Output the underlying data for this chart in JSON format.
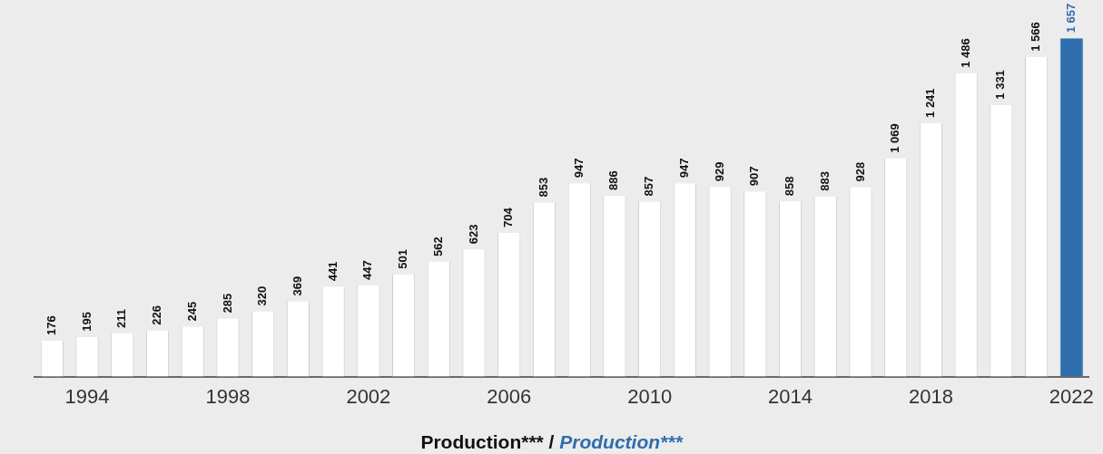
{
  "chart_data": {
    "type": "bar",
    "xlabel": "Production*** / Production***",
    "categories": [
      null,
      "1994",
      null,
      null,
      null,
      "1998",
      null,
      null,
      null,
      "2002",
      null,
      null,
      null,
      "2006",
      null,
      null,
      null,
      "2010",
      null,
      null,
      null,
      "2014",
      null,
      null,
      null,
      "2018",
      null,
      null,
      null,
      "2022"
    ],
    "values": [
      176,
      195,
      211,
      226,
      245,
      285,
      320,
      369,
      441,
      447,
      501,
      562,
      623,
      704,
      853,
      947,
      886,
      857,
      947,
      929,
      907,
      858,
      883,
      928,
      1069,
      1241,
      1486,
      1331,
      1566,
      1657
    ],
    "value_labels": [
      "176",
      "195",
      "211",
      "226",
      "245",
      "285",
      "320",
      "369",
      "441",
      "447",
      "501",
      "562",
      "623",
      "704",
      "853",
      "947",
      "886",
      "857",
      "947",
      "929",
      "907",
      "858",
      "883",
      "928",
      "1 069",
      "1 241",
      "1 486",
      "1 331",
      "1 566",
      "1 657"
    ],
    "colors": [
      "#ffffff",
      "#ffffff",
      "#ffffff",
      "#ffffff",
      "#ffffff",
      "#ffffff",
      "#ffffff",
      "#ffffff",
      "#ffffff",
      "#ffffff",
      "#ffffff",
      "#ffffff",
      "#ffffff",
      "#ffffff",
      "#ffffff",
      "#ffffff",
      "#ffffff",
      "#ffffff",
      "#ffffff",
      "#ffffff",
      "#ffffff",
      "#ffffff",
      "#ffffff",
      "#ffffff",
      "#ffffff",
      "#ffffff",
      "#ffffff",
      "#ffffff",
      "#ffffff",
      "#2f6ead"
    ],
    "grid": false,
    "legend": false
  }
}
